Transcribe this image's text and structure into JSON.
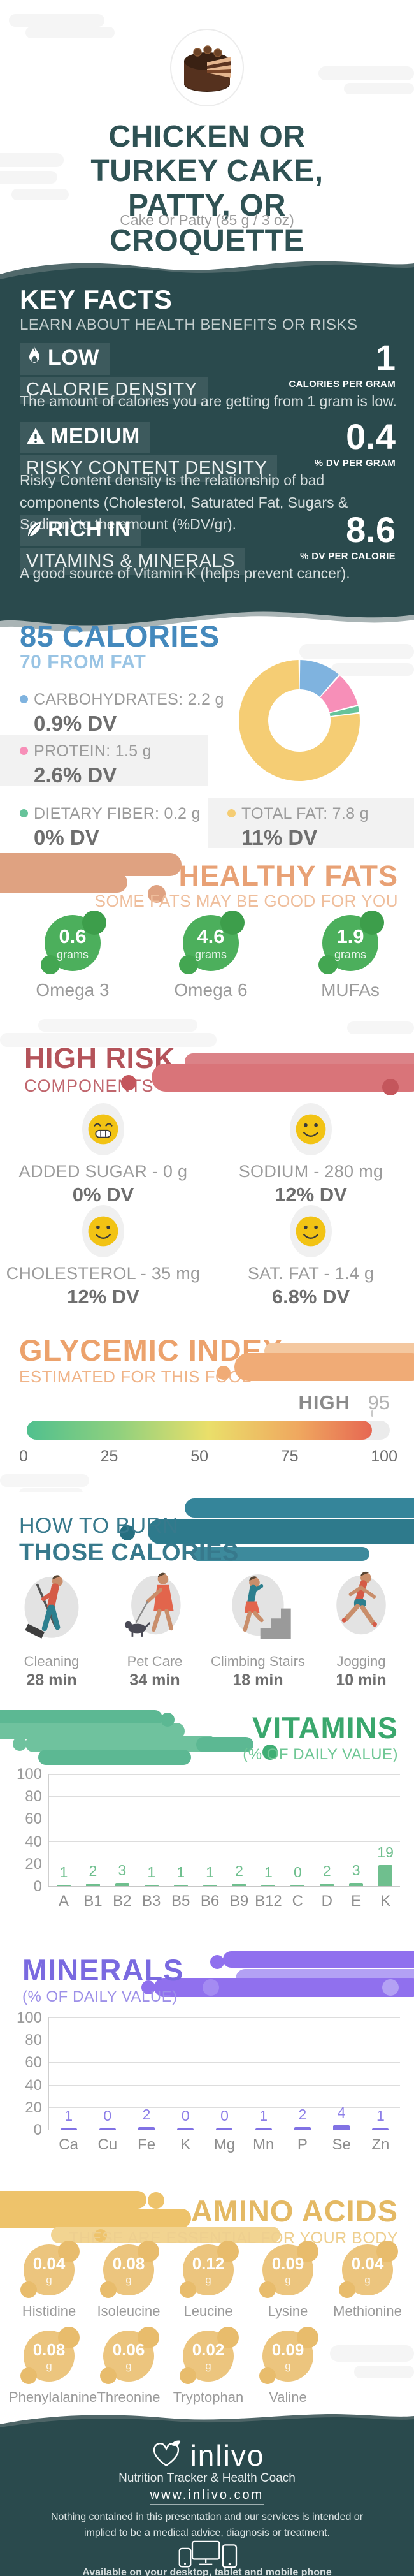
{
  "header": {
    "title": "CHICKEN OR TURKEY CAKE, PATTY, OR CROQUETTE",
    "subtitle": "Cake Or Patty (85 g / 3 oz)"
  },
  "key_facts": {
    "title": "KEY FACTS",
    "subtitle": "LEARN ABOUT HEALTH BENEFITS OR RISKS",
    "facts": [
      {
        "icon": "flame-icon",
        "level": "LOW",
        "name": "CALORIE DENSITY",
        "value": "1",
        "unit": "CALORIES PER GRAM",
        "description": "The amount of calories you are getting from 1 gram is low."
      },
      {
        "icon": "warning-icon",
        "level": "MEDIUM",
        "name": "RISKY CONTENT DENSITY",
        "value": "0.4",
        "unit": "% DV PER GRAM",
        "description": "Risky Content density is the relationship of bad components (Cholesterol, Saturated Fat, Sugars & Sodium) to the amount (%DV/gr)."
      },
      {
        "icon": "leaf-icon",
        "level": "RICH IN",
        "name": "VITAMINS & MINERALS",
        "value": "8.6",
        "unit": "% DV PER CALORIE",
        "description": "A good source of Vitamin K (helps prevent cancer)."
      }
    ]
  },
  "calories": {
    "title": "85 CALORIES",
    "subtitle": "70 FROM FAT",
    "legend": [
      {
        "label": "CARBOHYDRATES: 2.2 g",
        "dv": "0.9% DV"
      },
      {
        "label": "PROTEIN: 1.5 g",
        "dv": "2.6% DV"
      },
      {
        "label": "DIETARY FIBER: 0.2 g",
        "dv": "0% DV"
      },
      {
        "label": "TOTAL FAT: 7.8 g",
        "dv": "11% DV"
      }
    ]
  },
  "healthy_fats": {
    "title": "HEALTHY FATS",
    "subtitle": "SOME FATS MAY BE GOOD FOR YOU",
    "unit": "grams",
    "items": [
      {
        "value": "0.6",
        "label": "Omega 3"
      },
      {
        "value": "4.6",
        "label": "Omega 6"
      },
      {
        "value": "1.9",
        "label": "MUFAs"
      }
    ]
  },
  "high_risk": {
    "title": "HIGH RISK",
    "subtitle": "COMPONENTS",
    "items": [
      {
        "face": "grin",
        "label": "ADDED SUGAR - 0 g",
        "dv": "0% DV"
      },
      {
        "face": "smile",
        "label": "SODIUM - 280 mg",
        "dv": "12% DV"
      },
      {
        "face": "smile",
        "label": "CHOLESTEROL - 35 mg",
        "dv": "12% DV"
      },
      {
        "face": "smile",
        "label": "SAT. FAT - 1.4 g",
        "dv": "6.8% DV"
      }
    ]
  },
  "glycemic": {
    "title": "GLYCEMIC INDEX",
    "subtitle": "ESTIMATED FOR THIS FOOD"
  },
  "burn": {
    "title_line1": "HOW TO BURN",
    "title_line2": "THOSE CALORIES",
    "activities": [
      {
        "icon": "cleaning-icon",
        "label": "Cleaning",
        "time": "28 min"
      },
      {
        "icon": "pet-care-icon",
        "label": "Pet Care",
        "time": "34 min"
      },
      {
        "icon": "climbing-stairs-icon",
        "label": "Climbing Stairs",
        "time": "18 min"
      },
      {
        "icon": "jogging-icon",
        "label": "Jogging",
        "time": "10 min"
      }
    ]
  },
  "vitamins_section": {
    "title": "VITAMINS",
    "subtitle": "(% OF DAILY VALUE)"
  },
  "minerals_section": {
    "title": "MINERALS",
    "subtitle": "(% OF DAILY VALUE)"
  },
  "amino_acids": {
    "title": "AMINO ACIDS",
    "subtitle": "THESE ARE ESSENTIAL FOR YOUR BODY",
    "unit": "g",
    "items": [
      {
        "value": "0.04",
        "label": "Histidine"
      },
      {
        "value": "0.08",
        "label": "Isoleucine"
      },
      {
        "value": "0.12",
        "label": "Leucine"
      },
      {
        "value": "0.09",
        "label": "Lysine"
      },
      {
        "value": "0.04",
        "label": "Methionine"
      },
      {
        "value": "0.08",
        "label": "Phenylalanine"
      },
      {
        "value": "0.06",
        "label": "Threonine"
      },
      {
        "value": "0.02",
        "label": "Tryptophan"
      },
      {
        "value": "0.09",
        "label": "Valine"
      }
    ]
  },
  "footer": {
    "brand": "inlivo",
    "tagline": "Nutrition Tracker & Health Coach",
    "url": "www.inlivo.com",
    "disclaimer": "Nothing contained in this presentation and our services is intended or implied to be a medical advice, diagnosis or treatment.",
    "availability": "Available on your desktop, tablet and mobile phone"
  },
  "chart_data": [
    {
      "type": "pie",
      "title": "Calorie composition (donut)",
      "labels": [
        "Carbohydrates",
        "Protein",
        "Dietary Fiber",
        "Total Fat"
      ],
      "values_percent": [
        11.5,
        9.5,
        2,
        77
      ],
      "colors": [
        "#7FB3DF",
        "#F78FB8",
        "#66C39A",
        "#F5CD74"
      ],
      "hole": true,
      "legend_position": "left"
    },
    {
      "type": "bar",
      "title": "VITAMINS (% OF DAILY VALUE)",
      "categories": [
        "A",
        "B1",
        "B2",
        "B3",
        "B5",
        "B6",
        "B9",
        "B12",
        "C",
        "D",
        "E",
        "K"
      ],
      "values": [
        1,
        2,
        3,
        1,
        1,
        1,
        2,
        1,
        0,
        2,
        3,
        19
      ],
      "ylim": [
        0,
        100
      ],
      "yticks": [
        0,
        20,
        40,
        60,
        80,
        100
      ],
      "bar_color": "#6FBF8E",
      "label_color": "#6FBF8E",
      "grid": true
    },
    {
      "type": "bar",
      "title": "MINERALS (% OF DAILY VALUE)",
      "categories": [
        "Ca",
        "Cu",
        "Fe",
        "K",
        "Mg",
        "Mn",
        "P",
        "Se",
        "Zn"
      ],
      "values": [
        1,
        0,
        2,
        0,
        0,
        1,
        2,
        4,
        1
      ],
      "ylim": [
        0,
        100
      ],
      "yticks": [
        0,
        20,
        40,
        60,
        80,
        100
      ],
      "bar_color": "#8172E4",
      "label_color": "#8D7FE8",
      "grid": true
    },
    {
      "type": "gauge",
      "title": "Glycemic index scale",
      "min": 0,
      "max": 100,
      "value": 95,
      "level": "HIGH",
      "ticks": [
        0,
        25,
        50,
        75,
        100
      ],
      "gradient": [
        "#50C08E",
        "#EADF6A",
        "#E4574F"
      ]
    }
  ]
}
